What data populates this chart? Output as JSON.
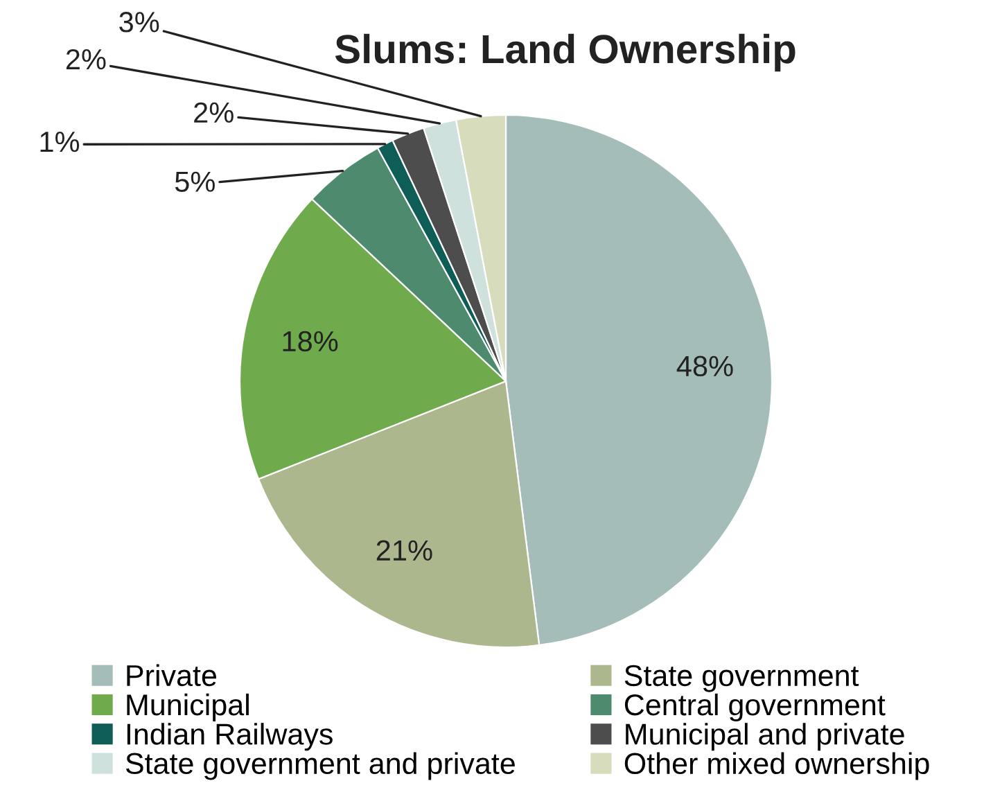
{
  "chart_data": {
    "type": "pie",
    "title": "Slums: Land Ownership",
    "categories": [
      "Private",
      "State government",
      "Municipal",
      "Central government",
      "Indian Railways",
      "Municipal and private",
      "State government and private",
      "Other mixed ownership"
    ],
    "values": [
      48,
      21,
      18,
      5,
      1,
      2,
      2,
      3
    ],
    "colors": [
      "#a4bdb8",
      "#adb78e",
      "#6fab4d",
      "#4e8a6e",
      "#0e5e57",
      "#4d4d4d",
      "#cfe1dd",
      "#d6dcbc"
    ],
    "value_labels": [
      "48%",
      "21%",
      "18%",
      "5%",
      "1%",
      "2%",
      "2%",
      "3%"
    ],
    "legend": "bottom"
  }
}
